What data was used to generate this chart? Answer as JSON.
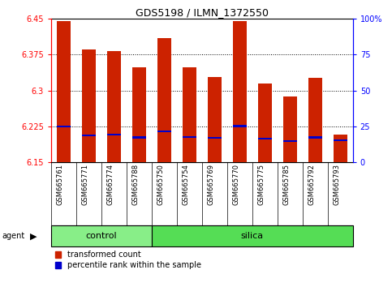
{
  "title": "GDS5198 / ILMN_1372550",
  "samples": [
    "GSM665761",
    "GSM665771",
    "GSM665774",
    "GSM665788",
    "GSM665750",
    "GSM665754",
    "GSM665769",
    "GSM665770",
    "GSM665775",
    "GSM665785",
    "GSM665792",
    "GSM665793"
  ],
  "groups": [
    "control",
    "control",
    "control",
    "control",
    "silica",
    "silica",
    "silica",
    "silica",
    "silica",
    "silica",
    "silica",
    "silica"
  ],
  "transformed_count": [
    6.445,
    6.385,
    6.383,
    6.348,
    6.41,
    6.348,
    6.328,
    6.445,
    6.315,
    6.288,
    6.327,
    6.208
  ],
  "percentile_rank_pct": [
    25.0,
    18.7,
    19.2,
    17.2,
    21.5,
    17.7,
    16.8,
    25.2,
    16.3,
    14.8,
    17.2,
    15.3
  ],
  "y_min": 6.15,
  "y_max": 6.45,
  "y_ticks_left": [
    6.15,
    6.225,
    6.3,
    6.375,
    6.45
  ],
  "y_ticks_right_vals": [
    0,
    25,
    50,
    75,
    100
  ],
  "bar_color": "#cc2200",
  "percentile_color": "#0000cc",
  "control_color": "#88ee88",
  "silica_color": "#55dd55",
  "tick_bg_color": "#cccccc",
  "background_color": "#ffffff",
  "bar_width": 0.55,
  "figsize": [
    4.83,
    3.54
  ],
  "dpi": 100,
  "n_control": 4,
  "n_silica": 8
}
